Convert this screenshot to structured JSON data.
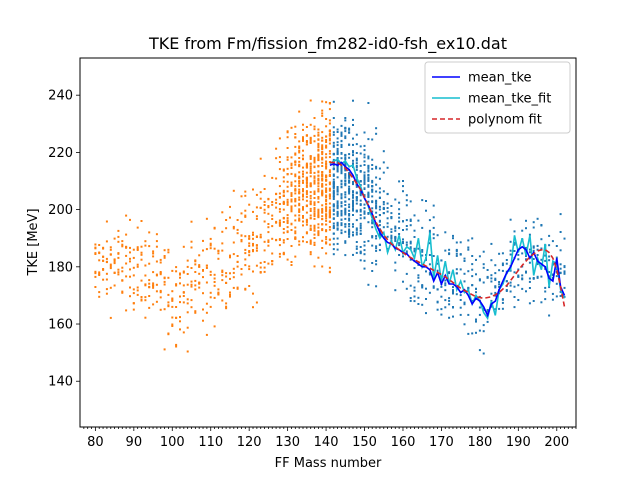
{
  "chart_data": {
    "type": "scatter",
    "title": "TKE from  Fm/fission_fm282-id0-fsh_ex10.dat",
    "xlabel": "FF Mass number",
    "ylabel": "TKE [MeV]",
    "xlim": [
      76,
      205
    ],
    "ylim": [
      124,
      253
    ],
    "xticks": [
      "80",
      "90",
      "100",
      "110",
      "120",
      "130",
      "140",
      "150",
      "160",
      "170",
      "180",
      "190",
      "200"
    ],
    "yticks": [
      "140",
      "160",
      "180",
      "200",
      "220",
      "240"
    ],
    "grid": false,
    "legend_position": "top-right",
    "scatter_colors": {
      "light": "#ff7f0e",
      "heavy": "#1f77b4"
    },
    "scatter_split_mass": 141,
    "scatter_envelope": [
      {
        "a": 80,
        "c": 180,
        "s": 9
      },
      {
        "a": 90,
        "c": 181,
        "s": 11
      },
      {
        "a": 100,
        "c": 170,
        "s": 12
      },
      {
        "a": 110,
        "c": 178,
        "s": 13
      },
      {
        "a": 120,
        "c": 188,
        "s": 13
      },
      {
        "a": 130,
        "c": 203,
        "s": 16
      },
      {
        "a": 136,
        "c": 208,
        "s": 17
      },
      {
        "a": 141,
        "c": 210,
        "s": 18
      },
      {
        "a": 146,
        "c": 208,
        "s": 17
      },
      {
        "a": 152,
        "c": 203,
        "s": 16
      },
      {
        "a": 162,
        "c": 188,
        "s": 13
      },
      {
        "a": 172,
        "c": 178,
        "s": 13
      },
      {
        "a": 182,
        "c": 170,
        "s": 12
      },
      {
        "a": 192,
        "c": 181,
        "s": 11
      },
      {
        "a": 202,
        "c": 180,
        "s": 9
      }
    ],
    "series": [
      {
        "name": "mean_tke",
        "color": "#0000ff",
        "style": "solid",
        "x": [
          141,
          142,
          143,
          144,
          145,
          146,
          147,
          148,
          149,
          150,
          151,
          152,
          153,
          154,
          155,
          156,
          157,
          158,
          159,
          160,
          161,
          162,
          163,
          164,
          165,
          166,
          167,
          168,
          169,
          170,
          171,
          172,
          173,
          174,
          175,
          176,
          177,
          178,
          179,
          180,
          181,
          182,
          183,
          184,
          185,
          186,
          187,
          188,
          189,
          190,
          191,
          192,
          193,
          194,
          195,
          196,
          197,
          198,
          199,
          200,
          201,
          202
        ],
        "y": [
          215.5,
          216,
          215.5,
          216.5,
          215,
          214,
          212,
          209,
          207,
          204,
          201.5,
          198.5,
          195,
          192,
          190,
          188.5,
          188,
          186.5,
          186,
          185,
          184.5,
          183,
          182,
          181,
          180,
          180,
          179,
          175,
          178,
          174,
          177,
          174,
          174,
          173,
          171,
          172,
          170,
          167,
          169,
          168,
          166,
          163,
          167,
          168,
          172,
          175,
          178,
          180,
          183,
          186,
          187,
          186,
          183,
          185,
          182,
          181,
          180,
          176,
          175,
          183,
          173,
          170
        ]
      },
      {
        "name": "mean_tke_fit",
        "color": "#17becf",
        "style": "solid",
        "x": [
          141,
          142,
          143,
          144,
          145,
          146,
          147,
          148,
          149,
          150,
          151,
          152,
          153,
          154,
          155,
          156,
          157,
          158,
          159,
          160,
          161,
          162,
          163,
          164,
          165,
          166,
          167,
          168,
          169,
          170,
          171,
          172,
          173,
          174,
          175,
          176,
          177,
          178,
          179,
          180,
          181,
          182,
          183,
          184,
          185,
          186,
          187,
          188,
          189,
          190,
          191,
          192,
          193,
          194,
          195,
          196,
          197,
          198,
          199,
          200,
          201,
          202
        ],
        "y": [
          216,
          217,
          217.5,
          216,
          217,
          215,
          215.5,
          211,
          208,
          204,
          201,
          197,
          193,
          190,
          192,
          185,
          189,
          186,
          191,
          185,
          187,
          186,
          183,
          190,
          180,
          183,
          192,
          176,
          184,
          175,
          182,
          174,
          179,
          172,
          175,
          171,
          172,
          167,
          170,
          168,
          164,
          162,
          168,
          163,
          172,
          174,
          178,
          179,
          191,
          185,
          190,
          184,
          191,
          177,
          183,
          179,
          188,
          173,
          182,
          181,
          172,
          169
        ]
      },
      {
        "name": "polynom fit",
        "color": "#d62728",
        "style": "dashed",
        "x": [
          141,
          143,
          145,
          147,
          149,
          151,
          153,
          155,
          157,
          159,
          161,
          163,
          165,
          167,
          169,
          171,
          173,
          175,
          177,
          179,
          181,
          183,
          185,
          187,
          189,
          191,
          193,
          195,
          196,
          197,
          198,
          199,
          200,
          201,
          202
        ],
        "y": [
          216.5,
          216.5,
          214.5,
          211,
          207,
          201.5,
          195.5,
          191,
          188,
          186,
          184,
          182.5,
          181,
          179.5,
          178,
          176.5,
          174.5,
          172.5,
          171,
          169.5,
          169,
          169.5,
          171,
          173.5,
          177,
          180.5,
          183.5,
          185.5,
          186,
          186,
          185,
          183,
          179,
          173,
          166
        ]
      }
    ]
  }
}
